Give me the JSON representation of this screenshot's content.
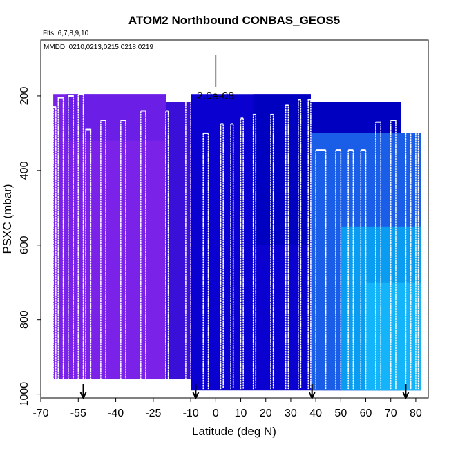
{
  "chart_data": {
    "type": "heatmap",
    "title": "ATOM2 Northbound CONBAS_GEOS5",
    "flights_note": "Flts: 6,7,8,9,10",
    "dates_note": "MMDD: 0210,0213,0215,0218,0219",
    "xlabel": "Latitude (deg N)",
    "ylabel": "PSXC (mbar)",
    "xlim": [
      -70,
      85
    ],
    "ylim": [
      1010,
      50
    ],
    "x_ticks": [
      -70,
      -55,
      -40,
      -25,
      -10,
      0,
      10,
      20,
      30,
      40,
      50,
      60,
      70,
      80
    ],
    "y_ticks": [
      200,
      400,
      600,
      800,
      1000
    ],
    "scale_label": "2.0e-08",
    "scale_bar_lat": 0,
    "colors": {
      "purple": "#7a22e8",
      "violet": "#6a1ee6",
      "indigo": "#3a0fd8",
      "blue": "#0a00d0",
      "darkblue": "#0000c0",
      "midblue": "#1a5ee8",
      "sky": "#0a9cf0",
      "cyan": "#14b4fb",
      "white": "#ffffff"
    },
    "field_blocks": [
      {
        "lat0": -65,
        "lat1": -20,
        "p0": 195,
        "p1": 960,
        "color": "purple"
      },
      {
        "lat0": -60,
        "lat1": -20,
        "p0": 195,
        "p1": 320,
        "color": "violet"
      },
      {
        "lat0": -20,
        "lat1": -5,
        "p0": 215,
        "p1": 960,
        "color": "indigo"
      },
      {
        "lat0": -10,
        "lat1": 38,
        "p0": 195,
        "p1": 990,
        "color": "blue"
      },
      {
        "lat0": 15,
        "lat1": 38,
        "p0": 195,
        "p1": 600,
        "color": "darkblue"
      },
      {
        "lat0": 38,
        "lat1": 74,
        "p0": 215,
        "p1": 990,
        "color": "darkblue"
      },
      {
        "lat0": 38,
        "lat1": 82,
        "p0": 300,
        "p1": 990,
        "color": "midblue"
      },
      {
        "lat0": 50,
        "lat1": 82,
        "p0": 550,
        "p1": 990,
        "color": "sky"
      },
      {
        "lat0": 60,
        "lat1": 82,
        "p0": 700,
        "p1": 990,
        "color": "cyan"
      }
    ],
    "profiles": [
      {
        "lat0": -65,
        "lat1": -64,
        "p_top": 230
      },
      {
        "lat0": -63,
        "lat1": -61,
        "p_top": 205
      },
      {
        "lat0": -59,
        "lat1": -57,
        "p_top": 200
      },
      {
        "lat0": -55,
        "lat1": -53,
        "p_top": 195
      },
      {
        "lat0": -52,
        "lat1": -50,
        "p_top": 290
      },
      {
        "lat0": -46,
        "lat1": -44,
        "p_top": 265
      },
      {
        "lat0": -38,
        "lat1": -36,
        "p_top": 265
      },
      {
        "lat0": -30,
        "lat1": -28,
        "p_top": 240
      },
      {
        "lat0": -20,
        "lat1": -19,
        "p_top": 240
      },
      {
        "lat0": -12,
        "lat1": -10,
        "p_top": 200
      },
      {
        "lat0": -5,
        "lat1": -3,
        "p_top": 300
      },
      {
        "lat0": 2,
        "lat1": 3,
        "p_top": 275
      },
      {
        "lat0": 6,
        "lat1": 7,
        "p_top": 275
      },
      {
        "lat0": 10,
        "lat1": 11,
        "p_top": 260
      },
      {
        "lat0": 15,
        "lat1": 16,
        "p_top": 250
      },
      {
        "lat0": 22,
        "lat1": 23,
        "p_top": 250
      },
      {
        "lat0": 28,
        "lat1": 29,
        "p_top": 225
      },
      {
        "lat0": 33,
        "lat1": 34,
        "p_top": 210
      },
      {
        "lat0": 37,
        "lat1": 38,
        "p_top": 210
      },
      {
        "lat0": 40,
        "lat1": 44,
        "p_top": 345
      },
      {
        "lat0": 48,
        "lat1": 50,
        "p_top": 345
      },
      {
        "lat0": 53,
        "lat1": 55,
        "p_top": 345
      },
      {
        "lat0": 58,
        "lat1": 60,
        "p_top": 345
      },
      {
        "lat0": 64,
        "lat1": 66,
        "p_top": 270
      },
      {
        "lat0": 70,
        "lat1": 72,
        "p_top": 265
      },
      {
        "lat0": 76,
        "lat1": 78,
        "p_top": 265
      },
      {
        "lat0": 80,
        "lat1": 81,
        "p_top": 290
      }
    ],
    "markers_lat": [
      -53,
      -8,
      38.5,
      76
    ]
  }
}
